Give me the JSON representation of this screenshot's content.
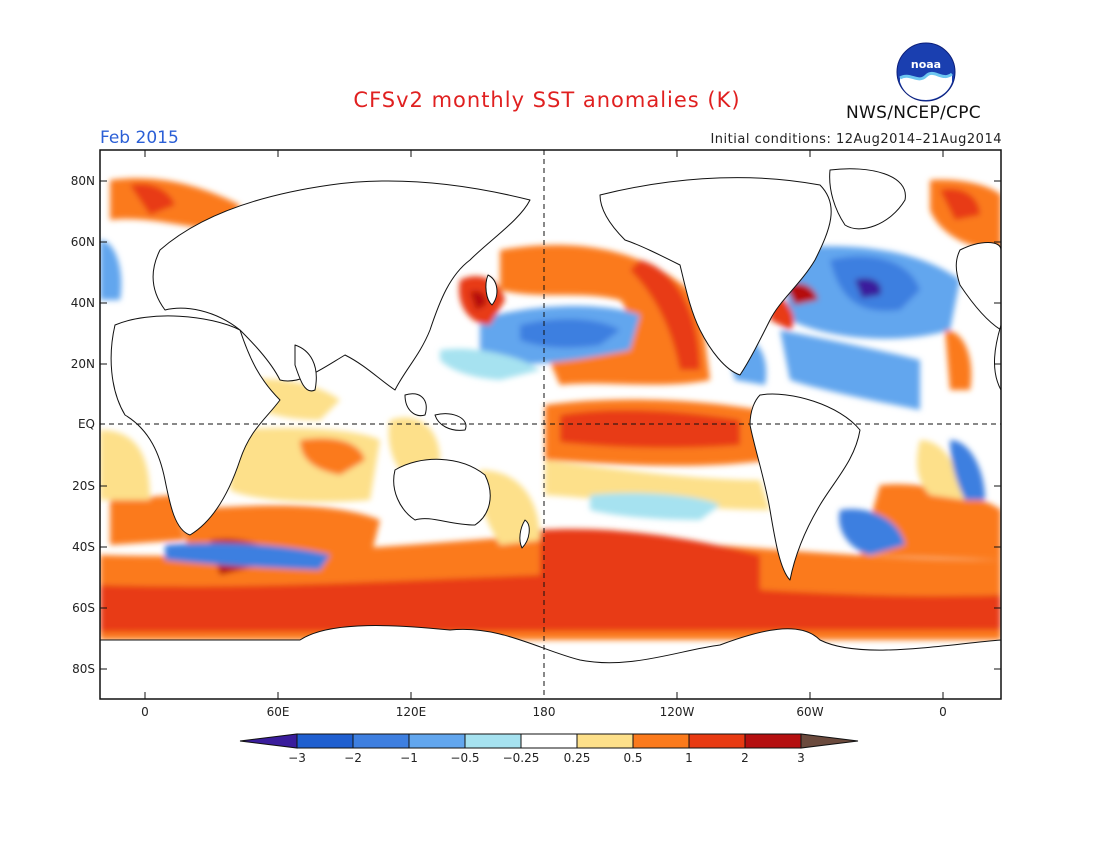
{
  "title": "CFSv2 monthly SST anomalies (K)",
  "month": "Feb 2015",
  "initial_conditions": "Initial conditions: 12Aug2014–21Aug2014",
  "agency": "NWS/NCEP/CPC",
  "logo_text": "noaa",
  "lat_labels": [
    "80N",
    "60N",
    "40N",
    "20N",
    "EQ",
    "20S",
    "40S",
    "60S",
    "80S"
  ],
  "lon_labels": [
    "0",
    "60E",
    "120E",
    "180",
    "120W",
    "60W",
    "0"
  ],
  "colorbar": {
    "labels": [
      "−3",
      "−2",
      "−1",
      "−0.5",
      "−0.25",
      "0.25",
      "0.5",
      "1",
      "2",
      "3"
    ],
    "colors": [
      "#3a1d9c",
      "#1f5fd0",
      "#3e7fe0",
      "#62a6ee",
      "#a6e2f0",
      "#ffffff",
      "#fde08a",
      "#fb7a1c",
      "#e83a12",
      "#b50f10",
      "#6b4a3d"
    ]
  },
  "units": "K"
}
